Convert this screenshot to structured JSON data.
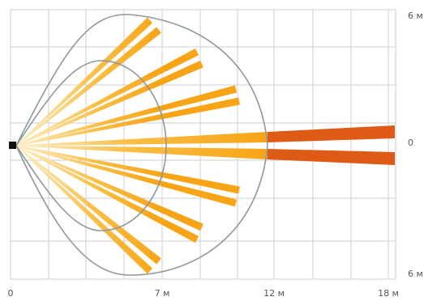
{
  "scale": {
    "x_labels": [
      "0",
      "7 м",
      "12 м",
      "18 м"
    ],
    "y_top": "6 м",
    "y_mid": "0",
    "y_bottom": "6 м"
  },
  "colors": {
    "grid": "#cfcfcf",
    "outline": "#8e989f",
    "beam": "#f7a416",
    "beam_far": "#de5b16",
    "sensor": "#111111",
    "label": "#555555"
  }
}
